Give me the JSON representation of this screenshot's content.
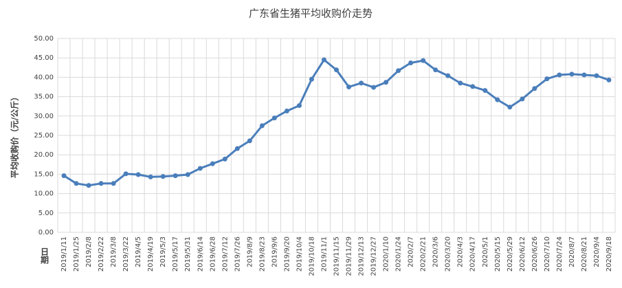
{
  "chart_data": {
    "type": "line",
    "title": "广东省生猪平均收购价走势",
    "y_label": "平均收购价（元/公斤）",
    "x_label": "日期",
    "categories": [
      "2019/1/11",
      "2019/1/25",
      "2019/2/8",
      "2019/2/22",
      "2019/3/8",
      "2019/3/22",
      "2019/4/5",
      "2019/4/19",
      "2019/5/3",
      "2019/5/17",
      "2019/5/31",
      "2019/6/14",
      "2019/6/28",
      "2019/7/12",
      "2019/7/26",
      "2019/8/9",
      "2019/8/23",
      "2019/9/6",
      "2019/9/20",
      "2019/10/4",
      "2019/10/18",
      "2019/11/1",
      "2019/11/15",
      "2019/11/29",
      "2019/12/13",
      "2019/12/27",
      "2020/1/10",
      "2020/1/24",
      "2020/2/7",
      "2020/2/21",
      "2020/3/6",
      "2020/3/20",
      "2020/4/3",
      "2020/4/17",
      "2020/5/1",
      "2020/5/15",
      "2020/5/29",
      "2020/6/12",
      "2020/6/26",
      "2020/7/10",
      "2020/7/24",
      "2020/8/7",
      "2020/8/21",
      "2020/9/4",
      "2020/9/18"
    ],
    "values": [
      14.6,
      12.6,
      12.1,
      12.6,
      12.6,
      15.1,
      14.9,
      14.3,
      14.4,
      14.6,
      14.9,
      16.5,
      17.7,
      18.9,
      21.6,
      23.6,
      27.5,
      29.5,
      31.3,
      32.7,
      39.5,
      44.5,
      41.9,
      37.5,
      38.5,
      37.4,
      38.7,
      41.7,
      43.7,
      44.3,
      41.9,
      40.4,
      38.5,
      37.6,
      36.6,
      34.2,
      32.3,
      34.4,
      37.1,
      39.6,
      40.6,
      40.8,
      40.6,
      40.4,
      39.3
    ],
    "color": "#4a7ebb",
    "ylim": [
      0,
      50
    ],
    "yticks": [
      {
        "value": 0,
        "label": "0.00"
      },
      {
        "value": 5,
        "label": "5.00"
      },
      {
        "value": 10,
        "label": "10.00"
      },
      {
        "value": 15,
        "label": "15.00"
      },
      {
        "value": 20,
        "label": "20.00"
      },
      {
        "value": 25,
        "label": "25.00"
      },
      {
        "value": 30,
        "label": "30.00"
      },
      {
        "value": 35,
        "label": "35.00"
      },
      {
        "value": 40,
        "label": "40.00"
      },
      {
        "value": 45,
        "label": "45.00"
      },
      {
        "value": 50,
        "label": "50.00"
      }
    ],
    "grid": true
  }
}
